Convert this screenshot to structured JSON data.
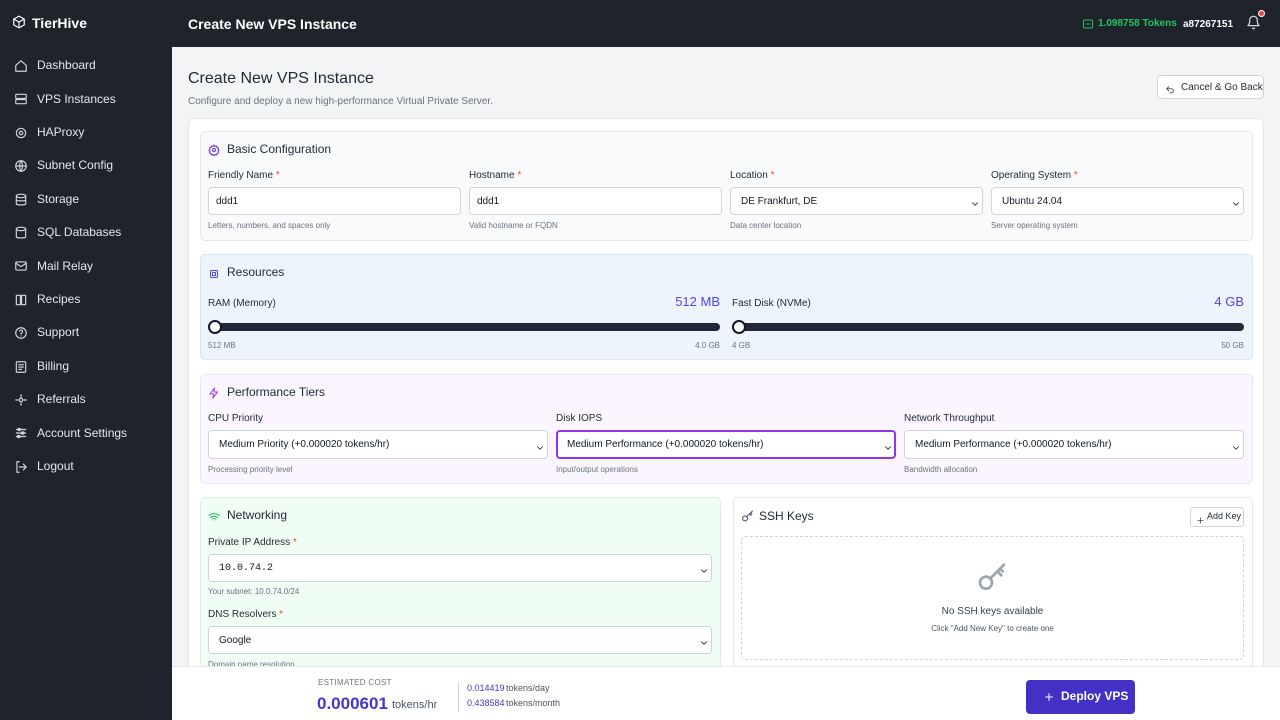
{
  "sidebar": {
    "brand": "TierHive",
    "items": [
      "Dashboard",
      "VPS Instances",
      "HAProxy",
      "Subnet Config",
      "Storage",
      "SQL Databases",
      "Mail Relay",
      "Recipes",
      "Support",
      "Billing",
      "Referrals",
      "Account Settings",
      "Logout"
    ]
  },
  "topbar": {
    "title": "Create New VPS Instance",
    "tokens": "1.098758 Tokens",
    "user": "a87267151"
  },
  "header": {
    "title": "Create New VPS Instance",
    "subtitle": "Configure and deploy a new high-performance Virtual Private Server.",
    "cancel": "Cancel & Go Back"
  },
  "basic": {
    "title": "Basic Configuration",
    "fields": [
      {
        "label": "Friendly Name",
        "required": "*",
        "value": "ddd1",
        "hint": "Letters, numbers, and spaces only"
      },
      {
        "label": "Hostname",
        "required": "*",
        "value": "ddd1",
        "hint": "Valid hostname or FQDN"
      },
      {
        "label": "Location",
        "required": "*",
        "value": "DE Frankfurt, DE",
        "hint": "Data center location"
      },
      {
        "label": "Operating System",
        "required": "*",
        "value": "Ubuntu 24.04",
        "hint": "Server operating system"
      }
    ]
  },
  "resources": {
    "title": "Resources",
    "sliders": [
      {
        "label": "RAM (Memory)",
        "value": "512 MB",
        "min": "512 MB",
        "max": "4.0 GB"
      },
      {
        "label": "Fast Disk (NVMe)",
        "value": "4 GB",
        "min": "4 GB",
        "max": "50 GB"
      }
    ]
  },
  "performance": {
    "title": "Performance Tiers",
    "fields": [
      {
        "label": "CPU Priority",
        "value": "Medium Priority (+0.000020 tokens/hr)",
        "hint": "Processing priority level"
      },
      {
        "label": "Disk IOPS",
        "value": "Medium Performance (+0.000020 tokens/hr)",
        "hint": "Input/output operations"
      },
      {
        "label": "Network Throughput",
        "value": "Medium Performance (+0.000020 tokens/hr)",
        "hint": "Bandwidth allocation"
      }
    ]
  },
  "networking": {
    "title": "Networking",
    "fields": [
      {
        "label": "Private IP Address",
        "required": "*",
        "value": "10.0.74.2",
        "hint": "Your subnet: 10.0.74.0/24"
      },
      {
        "label": "DNS Resolvers",
        "required": "*",
        "value": "Google",
        "hint": "Domain name resolution"
      }
    ]
  },
  "ssh": {
    "title": "SSH Keys",
    "add": "Add Key",
    "empty": "No SSH keys available",
    "help": "Click \"Add New Key\" to create one"
  },
  "footer": {
    "label": "ESTIMATED COST",
    "hourly": "0.000601",
    "hourly_unit": "tokens/hr",
    "daily": "0.014419",
    "daily_unit": "tokens/day",
    "monthly": "0.438584",
    "monthly_unit": "tokens/month",
    "deploy": "Deploy VPS"
  }
}
